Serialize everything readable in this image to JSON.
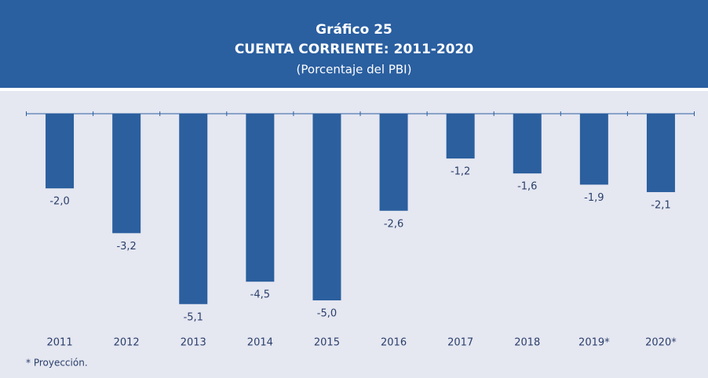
{
  "chart_data": {
    "type": "bar",
    "title": "Gráfico 25",
    "subtitle": "CUENTA CORRIENTE: 2011-2020",
    "unit_label": "(Porcentaje del PBI)",
    "categories": [
      "2011",
      "2012",
      "2013",
      "2014",
      "2015",
      "2016",
      "2017",
      "2018",
      "2019*",
      "2020*"
    ],
    "values": [
      -2.0,
      -3.2,
      -5.1,
      -4.5,
      -5.0,
      -2.6,
      -1.2,
      -1.6,
      -1.9,
      -2.1
    ],
    "value_labels": [
      "-2,0",
      "-3,2",
      "-5,1",
      "-4,5",
      "-5,0",
      "-2,6",
      "-1,2",
      "-1,6",
      "-1,9",
      "-2,1"
    ],
    "color": "#2b5f9e",
    "note": "* Proyección."
  }
}
